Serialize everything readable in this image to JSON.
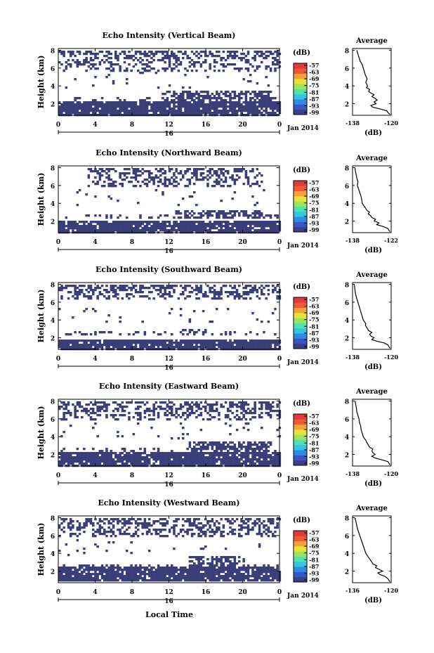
{
  "figure": {
    "xlabel": "Local Time",
    "date_label": "Jan 2014",
    "day_label": "16",
    "colorbar_unit": "(dB)",
    "colorbar_ticks": [
      "-57",
      "-63",
      "-69",
      "-75",
      "-81",
      "-87",
      "-93",
      "-99"
    ],
    "colorbar_colors": [
      "#3c3f8a",
      "#3a55c8",
      "#2f8de0",
      "#35c4e6",
      "#4fe3b0",
      "#9ce55c",
      "#e8e23a",
      "#f5a03a",
      "#ef5a35",
      "#e23a3a"
    ],
    "mask_color": "#3b3f79",
    "average_title": "Average",
    "average_xlabel": "(dB)"
  },
  "chart_data": [
    {
      "type": "heatmap",
      "title": "Echo Intensity (Vertical Beam)",
      "ylabel": "Height (km)",
      "x_ticks": [
        "0",
        "4",
        "8",
        "12",
        "16",
        "20",
        "0"
      ],
      "y_ticks": [
        "2",
        "4",
        "6",
        "8"
      ],
      "xlim": [
        0,
        24
      ],
      "ylim": [
        0.7,
        8.2
      ],
      "color_range_db": [
        -99,
        -57
      ],
      "dense_layers_km": [
        [
          0.8,
          2.4
        ]
      ],
      "elevated_layers": [
        {
          "t": [
            11,
            23
          ],
          "h": [
            2.3,
            3.6
          ]
        }
      ],
      "upper_layers": [
        {
          "t": [
            0,
            24
          ],
          "h": [
            5.8,
            8.0
          ]
        }
      ],
      "average": {
        "xlim": [
          -138,
          -120
        ],
        "x_ticks": [
          "-138",
          "-120"
        ],
        "y_ticks": [
          "2",
          "4",
          "6",
          "8"
        ],
        "height": [
          0.8,
          1.0,
          1.2,
          1.4,
          1.6,
          1.8,
          2.0,
          2.2,
          2.4,
          2.6,
          2.8,
          3.0,
          3.2,
          3.4,
          3.6,
          3.8,
          4.0,
          4.4,
          4.8,
          5.2,
          5.6,
          6.0,
          6.4,
          6.8,
          7.2,
          7.6,
          8.0
        ],
        "db": [
          -120.5,
          -121.5,
          -122.0,
          -125.0,
          -128.5,
          -129.5,
          -127.0,
          -128.0,
          -126.5,
          -127.5,
          -129.0,
          -128.0,
          -129.5,
          -130.5,
          -130.0,
          -131.5,
          -131.0,
          -131.8,
          -131.2,
          -132.0,
          -132.5,
          -133.0,
          -133.5,
          -134.5,
          -135.0,
          -135.5,
          -136.0
        ]
      }
    },
    {
      "type": "heatmap",
      "title": "Echo Intensity (Northward Beam)",
      "ylabel": "Height (km)",
      "x_ticks": [
        "0",
        "4",
        "8",
        "12",
        "16",
        "20",
        "0"
      ],
      "y_ticks": [
        "2",
        "4",
        "6",
        "8"
      ],
      "xlim": [
        0,
        24
      ],
      "ylim": [
        0.7,
        8.2
      ],
      "color_range_db": [
        -99,
        -57
      ],
      "dense_layers_km": [
        [
          0.8,
          2.2
        ]
      ],
      "elevated_layers": [
        {
          "t": [
            12.5,
            22
          ],
          "h": [
            2.3,
            3.4
          ]
        }
      ],
      "upper_layers": [
        {
          "t": [
            3,
            22
          ],
          "h": [
            6.0,
            8.0
          ]
        }
      ],
      "average": {
        "xlim": [
          -138,
          -122
        ],
        "x_ticks": [
          "-138",
          "-122"
        ],
        "y_ticks": [
          "2",
          "4",
          "6",
          "8"
        ],
        "height": [
          0.8,
          1.0,
          1.2,
          1.4,
          1.6,
          1.8,
          2.0,
          2.2,
          2.4,
          2.6,
          2.8,
          3.0,
          3.2,
          3.4,
          3.6,
          3.8,
          4.0,
          4.4,
          4.8,
          5.2,
          5.6,
          6.0,
          6.4,
          6.8,
          7.2,
          7.6,
          8.0
        ],
        "db": [
          -122.5,
          -123.0,
          -123.5,
          -125.5,
          -128.0,
          -127.0,
          -129.0,
          -128.5,
          -130.0,
          -130.5,
          -131.5,
          -131.0,
          -132.0,
          -132.5,
          -133.0,
          -133.5,
          -134.0,
          -134.2,
          -134.5,
          -135.0,
          -135.5,
          -136.0,
          -135.8,
          -136.2,
          -136.5,
          -136.8,
          -137.0
        ]
      }
    },
    {
      "type": "heatmap",
      "title": "Echo Intensity (Southward Beam)",
      "ylabel": "Height (km)",
      "x_ticks": [
        "0",
        "4",
        "8",
        "12",
        "16",
        "20",
        "0"
      ],
      "y_ticks": [
        "2",
        "4",
        "6",
        "8"
      ],
      "xlim": [
        0,
        24
      ],
      "ylim": [
        0.7,
        8.2
      ],
      "color_range_db": [
        -99,
        -57
      ],
      "dense_layers_km": [
        [
          0.8,
          2.0
        ]
      ],
      "elevated_layers": [
        {
          "t": [
            13,
            16
          ],
          "h": [
            2.3,
            3.0
          ]
        }
      ],
      "upper_layers": [
        {
          "t": [
            0,
            24
          ],
          "h": [
            6.4,
            8.0
          ]
        }
      ],
      "average": {
        "xlim": [
          -138,
          -120
        ],
        "x_ticks": [
          "-138",
          "-120"
        ],
        "y_ticks": [
          "2",
          "4",
          "6",
          "8"
        ],
        "height": [
          0.8,
          1.0,
          1.2,
          1.4,
          1.6,
          1.8,
          2.0,
          2.2,
          2.4,
          2.6,
          2.8,
          3.0,
          3.2,
          3.4,
          3.6,
          3.8,
          4.0,
          4.4,
          4.8,
          5.2,
          5.6,
          6.0,
          6.4,
          6.8,
          7.2,
          7.6,
          8.0
        ],
        "db": [
          -120.5,
          -121.0,
          -121.5,
          -123.0,
          -126.5,
          -129.0,
          -128.0,
          -129.5,
          -130.0,
          -129.0,
          -130.5,
          -131.0,
          -131.5,
          -132.0,
          -131.8,
          -132.5,
          -133.0,
          -133.5,
          -134.0,
          -134.5,
          -135.0,
          -135.5,
          -136.0,
          -136.5,
          -136.8,
          -137.0,
          -137.2
        ]
      }
    },
    {
      "type": "heatmap",
      "title": "Echo Intensity (Eastward Beam)",
      "ylabel": "Height (km)",
      "x_ticks": [
        "0",
        "4",
        "8",
        "12",
        "16",
        "20",
        "0"
      ],
      "y_ticks": [
        "2",
        "4",
        "6",
        "8"
      ],
      "xlim": [
        0,
        24
      ],
      "ylim": [
        0.7,
        8.2
      ],
      "color_range_db": [
        -99,
        -57
      ],
      "dense_layers_km": [
        [
          0.8,
          2.4
        ]
      ],
      "elevated_layers": [
        {
          "t": [
            14,
            23
          ],
          "h": [
            2.4,
            3.5
          ]
        }
      ],
      "upper_layers": [
        {
          "t": [
            0,
            24
          ],
          "h": [
            6.0,
            8.0
          ]
        }
      ],
      "average": {
        "xlim": [
          -138,
          -120
        ],
        "x_ticks": [
          "-138",
          "-120"
        ],
        "y_ticks": [
          "2",
          "4",
          "6",
          "8"
        ],
        "height": [
          0.8,
          1.0,
          1.2,
          1.4,
          1.6,
          1.8,
          2.0,
          2.2,
          2.4,
          2.6,
          2.8,
          3.0,
          3.2,
          3.4,
          3.6,
          3.8,
          4.0,
          4.4,
          4.8,
          5.2,
          5.6,
          6.0,
          6.4,
          6.8,
          7.2,
          7.6,
          8.0
        ],
        "db": [
          -120.5,
          -121.0,
          -121.5,
          -124.5,
          -127.5,
          -129.0,
          -127.5,
          -128.5,
          -129.0,
          -128.5,
          -130.0,
          -130.5,
          -131.0,
          -131.5,
          -131.8,
          -132.5,
          -133.0,
          -133.5,
          -134.0,
          -134.2,
          -134.8,
          -135.0,
          -135.5,
          -136.0,
          -136.2,
          -136.5,
          -136.8
        ]
      }
    },
    {
      "type": "heatmap",
      "title": "Echo Intensity (Westward Beam)",
      "ylabel": "Height (km)",
      "x_ticks": [
        "0",
        "4",
        "8",
        "12",
        "16",
        "20",
        "0"
      ],
      "y_ticks": [
        "2",
        "4",
        "6",
        "8"
      ],
      "xlim": [
        0,
        24
      ],
      "ylim": [
        0.7,
        8.2
      ],
      "color_range_db": [
        -99,
        -57
      ],
      "dense_layers_km": [
        [
          1.0,
          2.6
        ]
      ],
      "elevated_layers": [
        {
          "t": [
            14,
            20
          ],
          "h": [
            2.6,
            3.8
          ]
        }
      ],
      "upper_layers": [
        {
          "t": [
            0,
            24
          ],
          "h": [
            6.0,
            8.0
          ]
        }
      ],
      "average": {
        "xlim": [
          -136,
          -120
        ],
        "x_ticks": [
          "-136",
          "-120"
        ],
        "y_ticks": [
          "2",
          "4",
          "6",
          "8"
        ],
        "height": [
          0.8,
          1.0,
          1.2,
          1.4,
          1.6,
          1.8,
          2.0,
          2.2,
          2.4,
          2.6,
          2.8,
          3.0,
          3.2,
          3.4,
          3.6,
          3.8,
          4.0,
          4.4,
          4.8,
          5.2,
          5.6,
          6.0,
          6.4,
          6.8,
          7.2,
          7.6,
          8.0
        ],
        "db": [
          -120.5,
          -121.0,
          -121.5,
          -122.5,
          -124.5,
          -125.5,
          -123.5,
          -125.0,
          -126.5,
          -126.0,
          -127.5,
          -128.0,
          -128.5,
          -129.0,
          -129.5,
          -130.0,
          -130.5,
          -131.0,
          -131.5,
          -132.0,
          -132.5,
          -133.0,
          -133.5,
          -134.0,
          -134.3,
          -134.6,
          -135.0
        ]
      }
    }
  ]
}
